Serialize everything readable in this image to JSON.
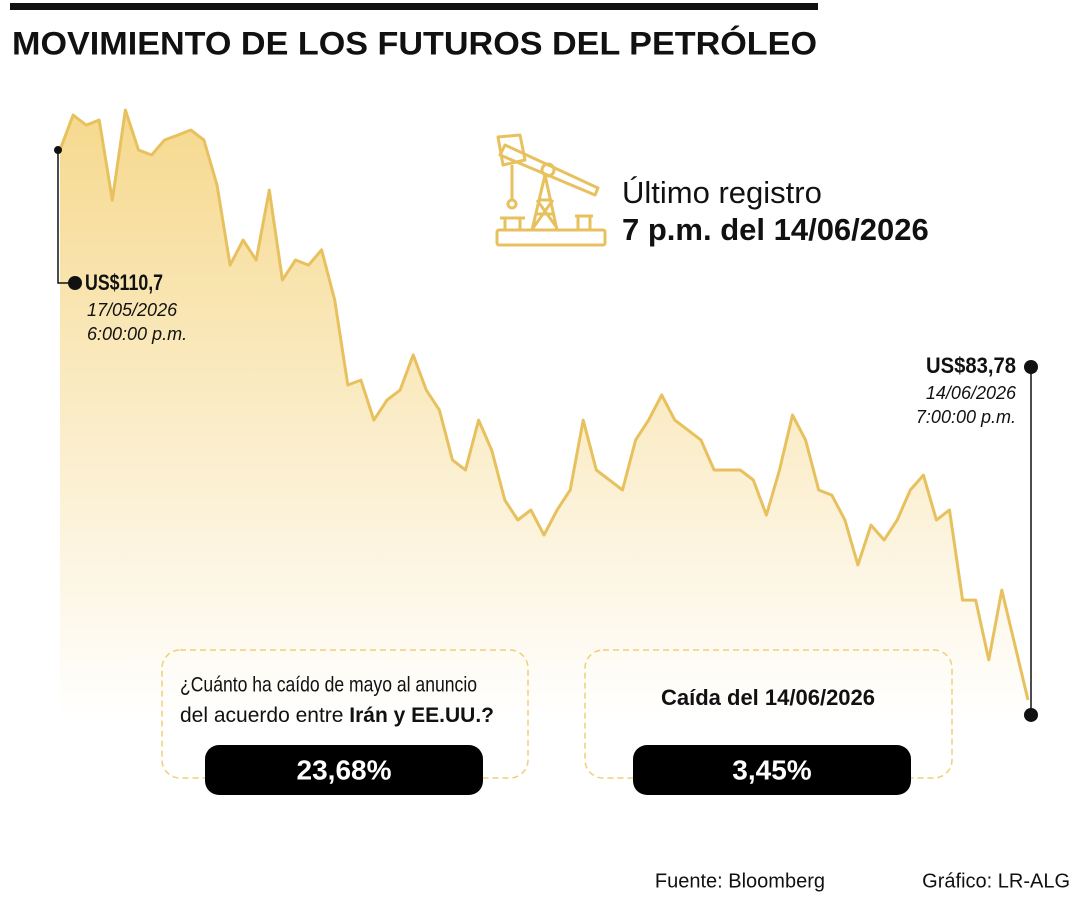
{
  "chart_data": {
    "type": "line",
    "title": "MOVIMIENTO DE LOS FUTUROS DEL PETRÓLEO",
    "subtitle": "Último registro",
    "subtitle_bold": "7 p.m. del 14/06/2026",
    "series": [
      {
        "color": "#e8c15f",
        "values": [
          110.7,
          112.41,
          111.92,
          112.17,
          108.25,
          112.66,
          110.7,
          110.46,
          111.19,
          111.43,
          111.68,
          111.19,
          108.99,
          105.07,
          106.29,
          105.32,
          108.74,
          104.34,
          105.32,
          105.07,
          105.81,
          103.36,
          99.2,
          99.44,
          97.48,
          98.46,
          98.95,
          100.67,
          98.95,
          97.97,
          95.53,
          95.04,
          97.48,
          96.01,
          93.57,
          92.59,
          93.08,
          91.85,
          93.08,
          94.06,
          97.48,
          95.04,
          94.55,
          94.06,
          96.5,
          97.48,
          98.71,
          97.48,
          96.99,
          96.5,
          95.04,
          95.04,
          95.04,
          94.55,
          92.83,
          95.04,
          97.73,
          96.5,
          94.06,
          93.81,
          92.59,
          90.39,
          92.34,
          91.61,
          92.59,
          94.06,
          94.79,
          92.59,
          93.08,
          88.67,
          88.67,
          85.74,
          89.16,
          86.47,
          83.78
        ]
      }
    ],
    "ylim": [
      82.8,
      113.15
    ],
    "annotations": [
      {
        "label": "US$110,7",
        "date": "17/05/2026",
        "time": "6:00:00 p.m."
      },
      {
        "label": "US$83,78",
        "date": "14/06/2026",
        "time": "7:00:00 p.m."
      }
    ],
    "boxes": [
      {
        "text": [
          "¿Cuánto ha caído de mayo al anuncio",
          "del acuerdo entre ",
          "Irán y EE.UU.?"
        ],
        "value": "23,68%"
      },
      {
        "text": [
          "Caída del 14/06/2026"
        ],
        "value": "3,45%"
      }
    ],
    "source": "Fuente: Bloomberg",
    "credit": "Gráfico: LR-ALG"
  }
}
